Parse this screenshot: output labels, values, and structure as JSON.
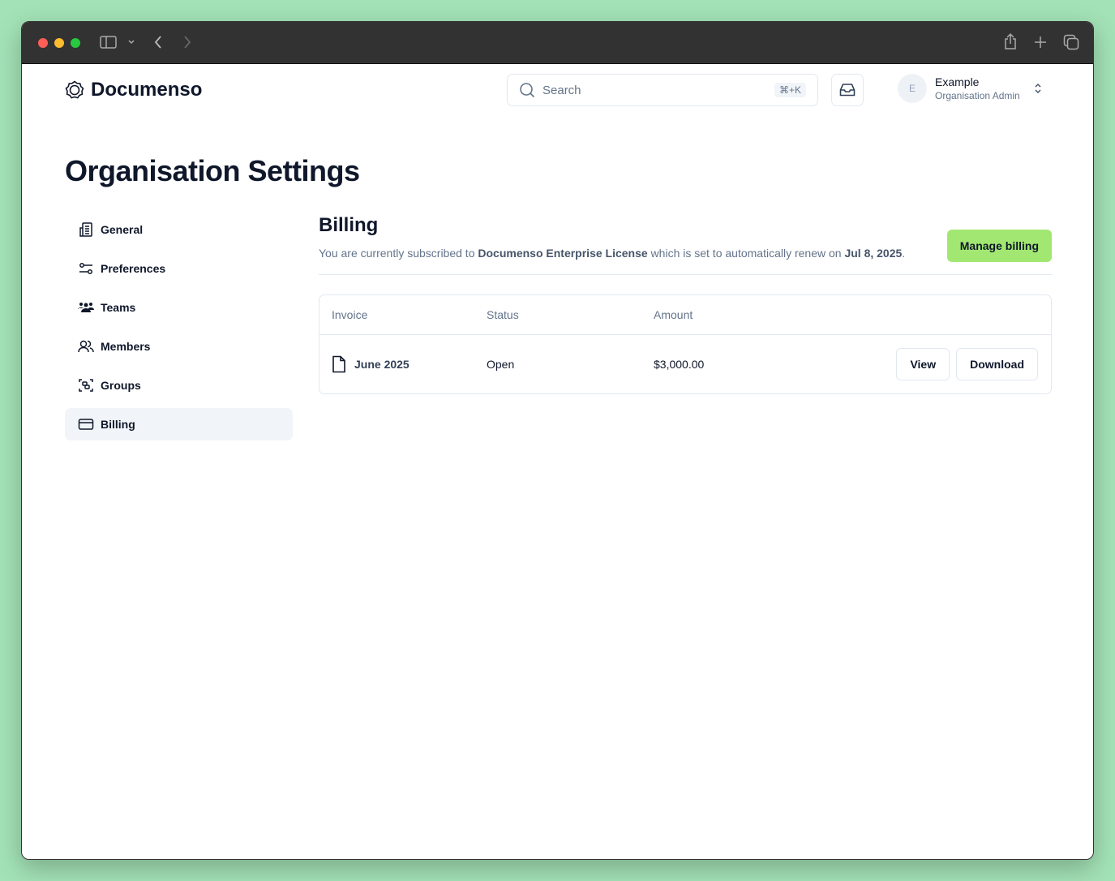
{
  "browser": {
    "icons": [
      "sidebar-icon",
      "chevron-down-icon",
      "back-icon",
      "forward-icon",
      "share-icon",
      "new-tab-icon",
      "tabs-overview-icon"
    ]
  },
  "header": {
    "brand": "Documenso",
    "search_placeholder": "Search",
    "search_shortcut": "⌘+K",
    "user": {
      "initial": "E",
      "name": "Example",
      "role": "Organisation Admin"
    }
  },
  "page": {
    "title": "Organisation Settings"
  },
  "sidebar": {
    "items": [
      {
        "label": "General",
        "icon": "building-icon"
      },
      {
        "label": "Preferences",
        "icon": "settings-sliders-icon"
      },
      {
        "label": "Teams",
        "icon": "users-filled-icon"
      },
      {
        "label": "Members",
        "icon": "users-icon"
      },
      {
        "label": "Groups",
        "icon": "group-icon"
      },
      {
        "label": "Billing",
        "icon": "credit-card-icon",
        "active": true
      }
    ]
  },
  "billing": {
    "title": "Billing",
    "desc_prefix": "You are currently subscribed to ",
    "plan": "Documenso Enterprise License",
    "desc_mid": " which is set to automatically renew on ",
    "renew_date": "Jul 8, 2025",
    "desc_suffix": ".",
    "manage_label": "Manage billing",
    "table": {
      "headers": [
        "Invoice",
        "Status",
        "Amount"
      ],
      "rows": [
        {
          "invoice": "June 2025",
          "status": "Open",
          "amount": "$3,000.00",
          "view": "View",
          "download": "Download"
        }
      ]
    }
  },
  "colors": {
    "accent": "#a2e771",
    "background": "#a3e2b6"
  }
}
